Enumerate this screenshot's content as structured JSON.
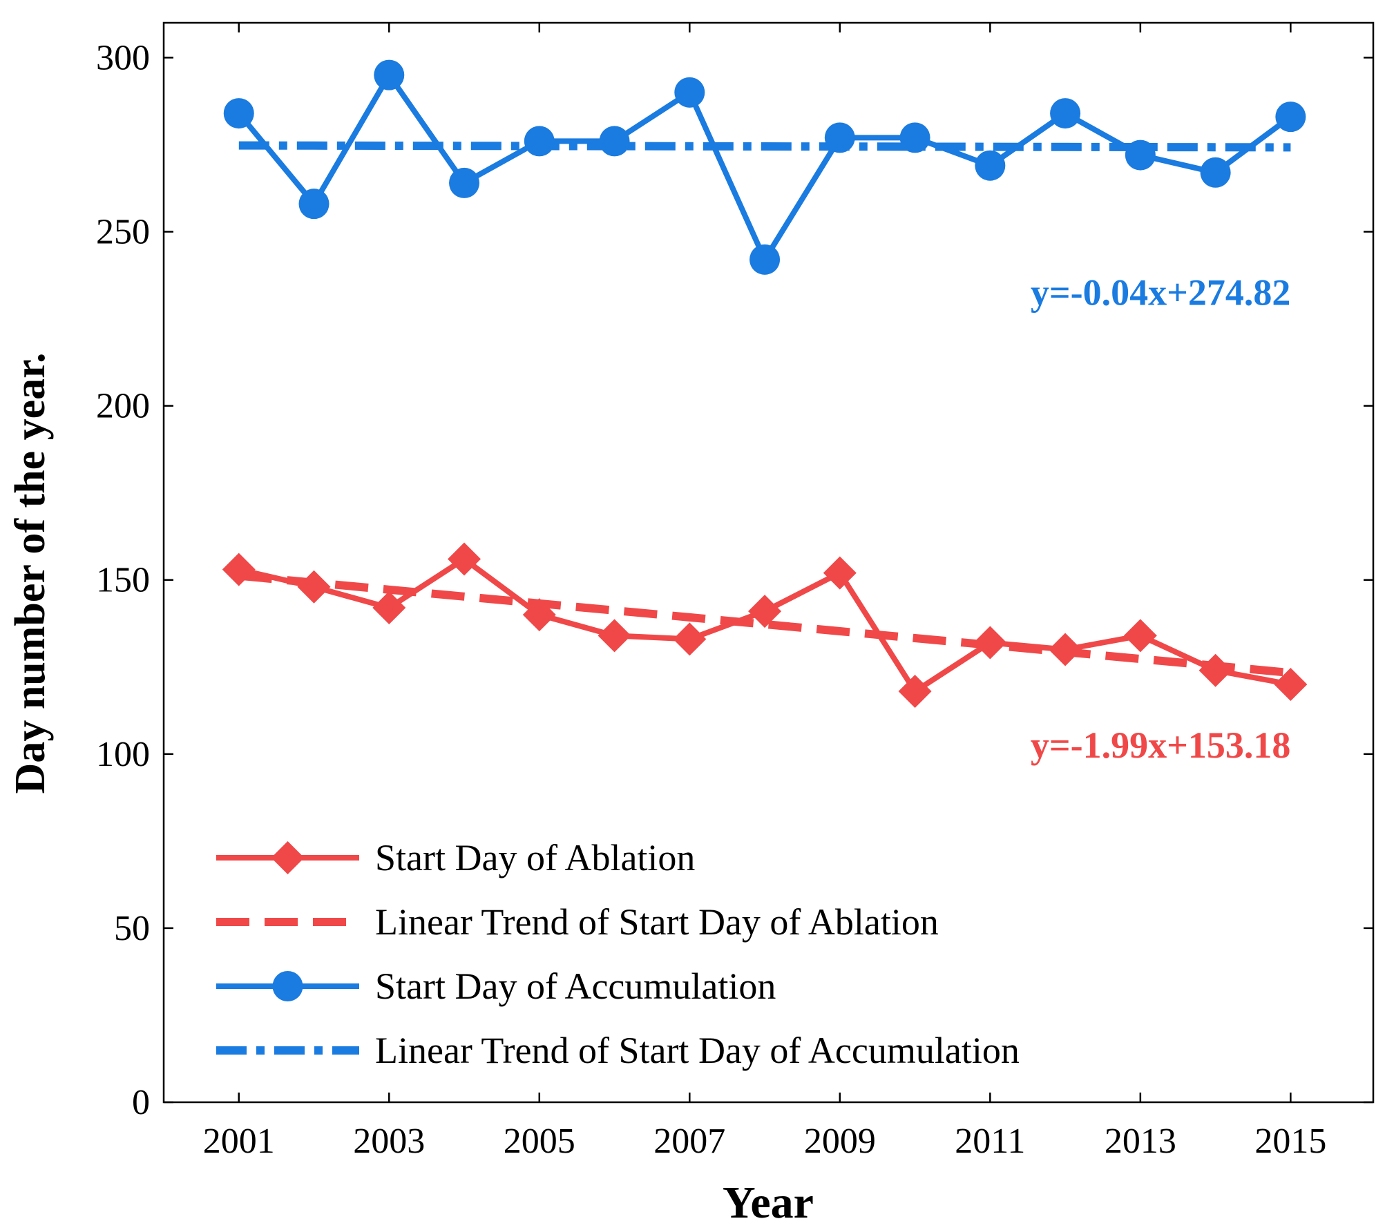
{
  "chart_data": {
    "type": "line",
    "title": "",
    "xlabel": "Year",
    "ylabel": "Day number of the year.",
    "xlim": [
      2000,
      2016.1
    ],
    "ylim": [
      0,
      310
    ],
    "x_ticks": [
      2001,
      2003,
      2005,
      2007,
      2009,
      2011,
      2013,
      2015
    ],
    "y_ticks": [
      0,
      50,
      100,
      150,
      200,
      250,
      300
    ],
    "x": [
      2001,
      2002,
      2003,
      2004,
      2005,
      2006,
      2007,
      2008,
      2009,
      2010,
      2011,
      2012,
      2013,
      2014,
      2015
    ],
    "grid": false,
    "legend_position": "lower-left",
    "series": [
      {
        "name": "Start Day of Ablation",
        "style": "solid",
        "marker": "diamond",
        "color": "#f04848",
        "values": [
          153,
          148,
          142,
          156,
          140,
          134,
          133,
          141,
          152,
          118,
          132,
          130,
          134,
          124,
          120
        ]
      },
      {
        "name": "Linear Trend of Start Day of Ablation",
        "style": "dashed",
        "marker": "none",
        "color": "#f04848",
        "values": [
          151.19,
          149.2,
          147.21,
          145.22,
          143.23,
          141.24,
          139.25,
          137.26,
          135.27,
          133.28,
          131.29,
          129.3,
          127.31,
          125.32,
          123.33
        ]
      },
      {
        "name": "Start Day of Accumulation",
        "style": "solid",
        "marker": "circle",
        "color": "#1a7be0",
        "values": [
          284,
          258,
          295,
          264,
          276,
          276,
          290,
          242,
          277,
          277,
          269,
          284,
          272,
          267,
          283
        ]
      },
      {
        "name": "Linear Trend of Start Day of Accumulation",
        "style": "dashdot",
        "marker": "none",
        "color": "#1a7be0",
        "values": [
          274.78,
          274.74,
          274.7,
          274.66,
          274.62,
          274.58,
          274.54,
          274.5,
          274.46,
          274.42,
          274.38,
          274.34,
          274.3,
          274.26,
          274.22
        ]
      }
    ],
    "annotations": [
      {
        "text": "y=-0.04x+274.82",
        "color": "#1a7be0",
        "x": 2015,
        "y": 229,
        "anchor": "end"
      },
      {
        "text": "y=-1.99x+153.18",
        "color": "#f04848",
        "x": 2015,
        "y": 99,
        "anchor": "end"
      }
    ]
  }
}
